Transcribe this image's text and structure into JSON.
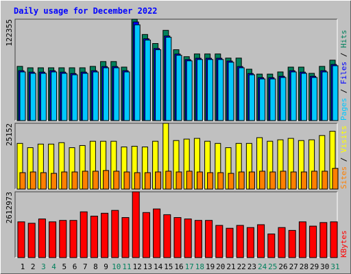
{
  "chart_data": [
    {
      "type": "bar",
      "title": "Daily usage for December 2022",
      "ylim": [
        0,
        122355
      ],
      "yticks": [
        122355
      ],
      "legend_separator": " / ",
      "series": [
        {
          "name": "Hits",
          "color": "#00805c",
          "values": [
            65400,
            63700,
            63700,
            63700,
            63700,
            63700,
            63700,
            65400,
            71230,
            71230,
            64530,
            122355,
            103900,
            93000,
            108900,
            85500,
            77100,
            80400,
            80400,
            80400,
            75400,
            75400,
            62000,
            56100,
            56100,
            58700,
            64500,
            64500,
            57000,
            65400,
            72900
          ]
        },
        {
          "name": "Files",
          "color": "#0000ff",
          "values": [
            60200,
            58500,
            58500,
            60200,
            58500,
            56800,
            58500,
            60200,
            65200,
            65200,
            60200,
            119000,
            98700,
            87000,
            102100,
            80300,
            73600,
            75200,
            75200,
            75200,
            71900,
            65200,
            56800,
            51800,
            51800,
            53500,
            60200,
            58500,
            53500,
            60200,
            67700
          ]
        },
        {
          "name": "Pages",
          "color": "#00c8ff",
          "values": [
            58700,
            57000,
            57000,
            58700,
            57000,
            55300,
            57000,
            58700,
            63700,
            63700,
            58700,
            115600,
            97200,
            85500,
            100600,
            78800,
            72100,
            73700,
            73700,
            73700,
            70400,
            63700,
            55300,
            50300,
            50300,
            52000,
            58700,
            57000,
            52000,
            58700,
            66200
          ]
        }
      ]
    },
    {
      "type": "bar",
      "ylim": [
        0,
        25152
      ],
      "yticks": [
        25152
      ],
      "legend_separator": " / ",
      "series": [
        {
          "name": "Visits",
          "color": "#ffff00",
          "values": [
            17470,
            15830,
            17200,
            17200,
            17750,
            15830,
            16650,
            18290,
            18290,
            18290,
            16110,
            16380,
            16110,
            18290,
            25152,
            18560,
            19110,
            19380,
            18290,
            17470,
            15830,
            17470,
            17470,
            19660,
            18290,
            18840,
            19380,
            18560,
            18840,
            20480,
            22110
          ]
        },
        {
          "name": "Sites",
          "color": "#ff8000",
          "values": [
            6280,
            6550,
            6280,
            6010,
            6550,
            6550,
            6830,
            6830,
            7100,
            6830,
            6550,
            6280,
            6280,
            6550,
            6830,
            6550,
            6830,
            6550,
            6280,
            6280,
            6010,
            6550,
            6550,
            6830,
            6550,
            6830,
            6550,
            6550,
            6830,
            6830,
            7920
          ]
        }
      ]
    },
    {
      "type": "bar",
      "ylim": [
        0,
        2612973
      ],
      "yticks": [
        2612973
      ],
      "categories": [
        "1",
        "2",
        "3",
        "4",
        "5",
        "6",
        "7",
        "8",
        "9",
        "10",
        "11",
        "12",
        "13",
        "14",
        "15",
        "16",
        "17",
        "18",
        "19",
        "20",
        "21",
        "22",
        "23",
        "24",
        "25",
        "26",
        "27",
        "28",
        "29",
        "30",
        "31"
      ],
      "category_colors": [
        "#000000",
        "#000000",
        "#00805c",
        "#00805c",
        "#000000",
        "#000000",
        "#000000",
        "#000000",
        "#000000",
        "#00805c",
        "#00805c",
        "#000000",
        "#000000",
        "#000000",
        "#000000",
        "#000000",
        "#00805c",
        "#00805c",
        "#000000",
        "#000000",
        "#000000",
        "#000000",
        "#000000",
        "#00805c",
        "#00805c",
        "#000000",
        "#000000",
        "#000000",
        "#000000",
        "#000000",
        "#00805c"
      ],
      "series": [
        {
          "name": "KBytes",
          "color": "#ff0000",
          "values": [
            1420100,
            1363300,
            1533700,
            1420100,
            1476900,
            1476900,
            1817700,
            1647300,
            1760900,
            1874500,
            1590500,
            2612973,
            1789300,
            1931300,
            1704100,
            1590500,
            1533700,
            1476900,
            1476900,
            1278100,
            1164500,
            1278100,
            1192900,
            1306500,
            937300,
            1192900,
            1079300,
            1420100,
            1249700,
            1391700,
            1420100
          ]
        }
      ]
    }
  ]
}
